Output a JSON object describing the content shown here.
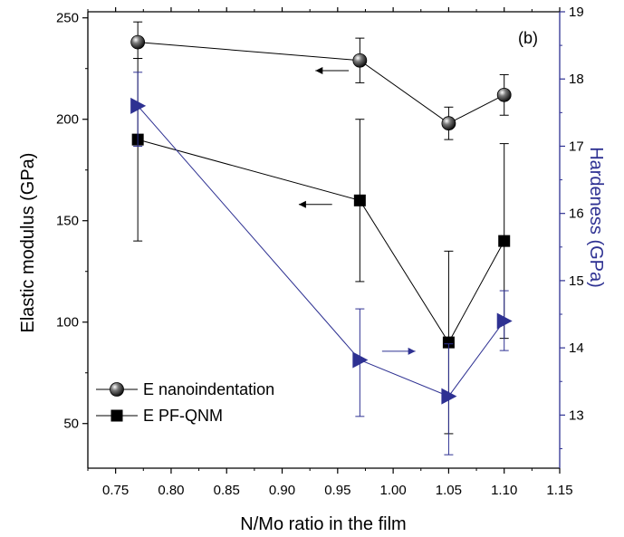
{
  "chart_data": {
    "type": "line",
    "panel_label": "(b)",
    "xlabel": "N/Mo ratio in the film",
    "ylabel": "Elastic modulus (GPa)",
    "y2label": "Hardeness (GPa)",
    "xlim": [
      0.725,
      1.15
    ],
    "ylim": [
      28,
      253
    ],
    "y2lim": [
      12.21,
      19.0
    ],
    "x_ticks": [
      0.75,
      0.8,
      0.85,
      0.9,
      0.95,
      1.0,
      1.05,
      1.1,
      1.15
    ],
    "x_tick_labels": [
      "0.75",
      "0.80",
      "0.85",
      "0.90",
      "0.95",
      "1.00",
      "1.05",
      "1.10",
      "1.15"
    ],
    "y_ticks": [
      50,
      100,
      150,
      200,
      250
    ],
    "y_tick_labels": [
      "50",
      "100",
      "150",
      "200",
      "250"
    ],
    "y2_ticks": [
      13,
      14,
      15,
      16,
      17,
      18,
      19
    ],
    "y2_tick_labels": [
      "13",
      "14",
      "15",
      "16",
      "17",
      "18",
      "19"
    ],
    "right_axis_color": "#2e3192",
    "series": [
      {
        "name": "E nanoindentation",
        "axis": "left",
        "marker": "sphere",
        "color": "#000000",
        "x": [
          0.77,
          0.97,
          1.05,
          1.1
        ],
        "y": [
          238,
          229,
          198,
          212
        ],
        "err_low": [
          230,
          218,
          190,
          202
        ],
        "err_high": [
          248,
          240,
          206,
          222
        ]
      },
      {
        "name": "E PF-QNM",
        "axis": "left",
        "marker": "square",
        "color": "#000000",
        "x": [
          0.77,
          0.97,
          1.05,
          1.1
        ],
        "y": [
          190,
          160,
          90,
          140
        ],
        "err_low": [
          140,
          120,
          45,
          92
        ],
        "err_high": [
          230,
          200,
          135,
          188
        ]
      },
      {
        "axis": "right",
        "marker": "triangle-right",
        "color": "#2e3192",
        "x": [
          0.77,
          0.97,
          1.05,
          1.1
        ],
        "y": [
          17.6,
          13.82,
          13.28,
          14.4
        ],
        "err_low": [
          17.0,
          12.98,
          12.41,
          13.96
        ],
        "err_high": [
          18.1,
          14.58,
          14.06,
          14.85
        ]
      }
    ],
    "direction_arrows": [
      {
        "points_to": "left",
        "axis": "left",
        "x_from": 0.96,
        "x_to": 0.93,
        "y": 224
      },
      {
        "points_to": "left",
        "axis": "left",
        "x_from": 0.945,
        "x_to": 0.915,
        "y": 158
      },
      {
        "points_to": "right",
        "axis": "right",
        "x_from": 0.99,
        "x_to": 1.02,
        "y": 13.95
      }
    ],
    "legend": {
      "position": "bottom-left",
      "entries": [
        "E nanoindentation",
        "E PF-QNM"
      ]
    }
  }
}
